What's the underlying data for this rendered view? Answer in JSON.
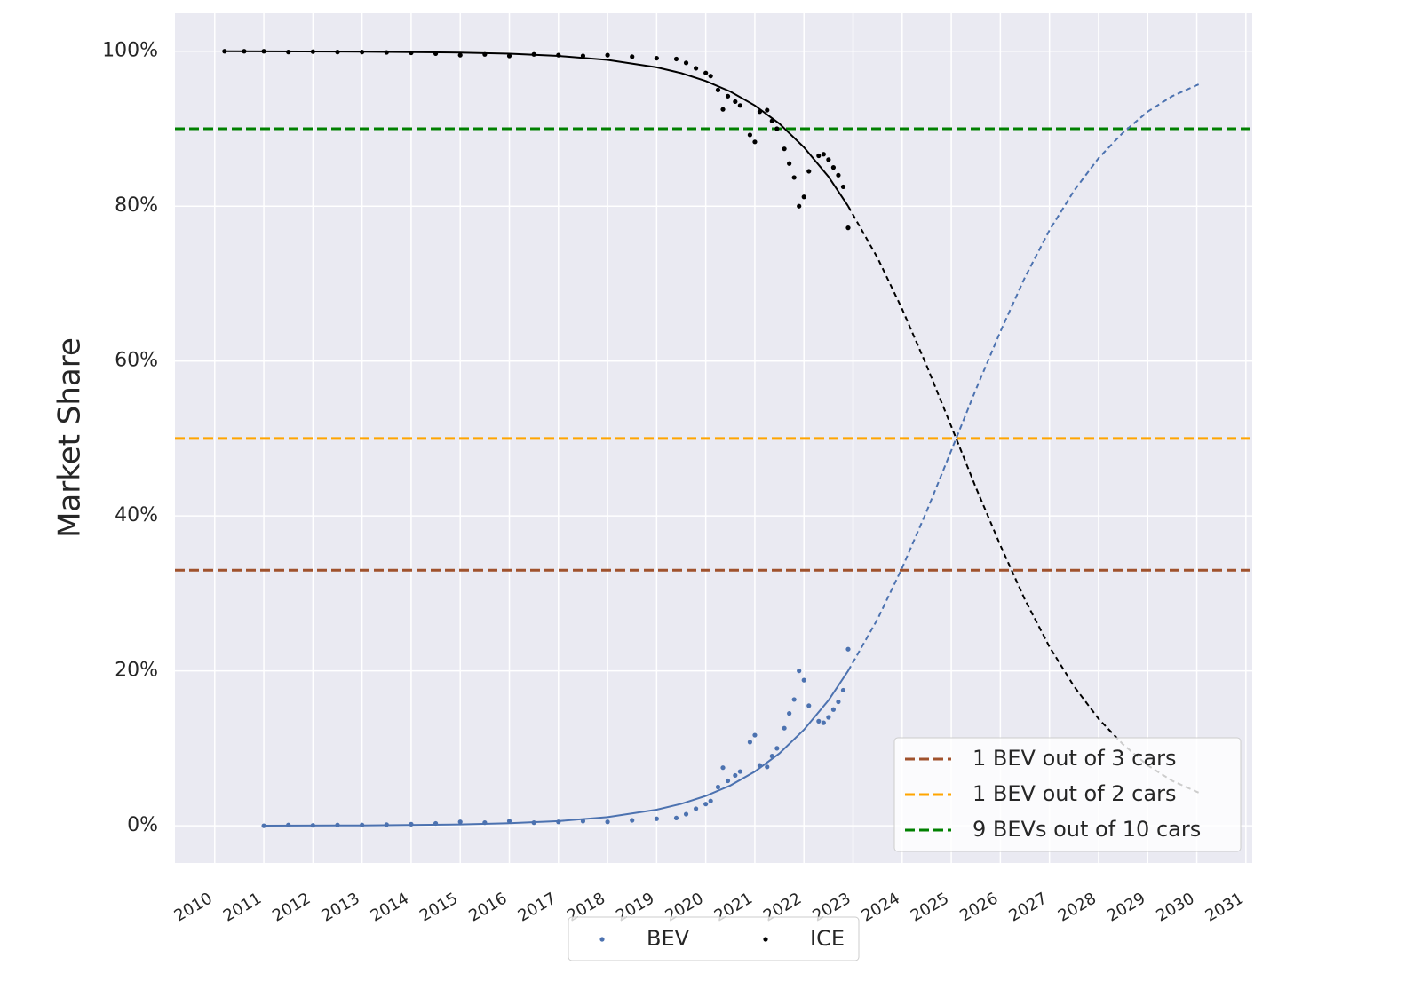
{
  "chart_data": {
    "type": "scatter",
    "y_label": "Market Share",
    "xlim": [
      2009.19,
      2031.13
    ],
    "ylim": [
      -4.8,
      104.9
    ],
    "xticks": [
      2010,
      2011,
      2012,
      2013,
      2014,
      2015,
      2016,
      2017,
      2018,
      2019,
      2020,
      2021,
      2022,
      2023,
      2024,
      2025,
      2026,
      2027,
      2028,
      2029,
      2030,
      2031
    ],
    "yticks": [
      {
        "value": 0,
        "label": "0%"
      },
      {
        "value": 20,
        "label": "20%"
      },
      {
        "value": 40,
        "label": "40%"
      },
      {
        "value": 60,
        "label": "60%"
      },
      {
        "value": 80,
        "label": "80%"
      },
      {
        "value": 100,
        "label": "100%"
      }
    ],
    "grid": true,
    "series": [
      {
        "name": "BEV",
        "color": "#4c72b0",
        "x": [
          2011.0,
          2011.5,
          2012,
          2012.5,
          2013,
          2013.5,
          2014,
          2014.5,
          2015,
          2015.5,
          2016,
          2016.5,
          2017,
          2017.5,
          2018,
          2018.5,
          2019,
          2019.4,
          2019.6,
          2019.8,
          2020,
          2020.1,
          2020.25,
          2020.35,
          2020.45,
          2020.6,
          2020.7,
          2020.9,
          2021.0,
          2021.1,
          2021.25,
          2021.35,
          2021.45,
          2021.6,
          2021.7,
          2021.8,
          2021.9,
          2022.0,
          2022.1,
          2022.3,
          2022.4,
          2022.5,
          2022.6,
          2022.7,
          2022.8,
          2022.9
        ],
        "values": [
          0,
          0.1,
          0.05,
          0.1,
          0.1,
          0.15,
          0.2,
          0.3,
          0.5,
          0.4,
          0.6,
          0.4,
          0.5,
          0.6,
          0.5,
          0.7,
          0.9,
          1.0,
          1.5,
          2.2,
          2.8,
          3.2,
          5.0,
          7.5,
          5.8,
          6.5,
          7.0,
          10.8,
          11.7,
          7.8,
          7.6,
          9.0,
          10.0,
          12.6,
          14.5,
          16.3,
          20,
          18.8,
          15.5,
          13.5,
          13.3,
          14,
          15,
          16,
          17.5,
          22.8
        ]
      },
      {
        "name": "ICE",
        "color": "#000000",
        "x": [
          2010.2,
          2010.6,
          2011.0,
          2011.5,
          2012,
          2012.5,
          2013,
          2013.5,
          2014,
          2014.5,
          2015,
          2015.5,
          2016,
          2016.5,
          2017,
          2017.5,
          2018,
          2018.5,
          2019,
          2019.4,
          2019.6,
          2019.8,
          2020,
          2020.1,
          2020.25,
          2020.35,
          2020.45,
          2020.6,
          2020.7,
          2020.9,
          2021.0,
          2021.1,
          2021.25,
          2021.35,
          2021.45,
          2021.6,
          2021.7,
          2021.8,
          2021.9,
          2022.0,
          2022.1,
          2022.3,
          2022.4,
          2022.5,
          2022.6,
          2022.7,
          2022.8,
          2022.9
        ],
        "values": [
          100,
          100,
          100,
          99.9,
          99.95,
          99.9,
          99.9,
          99.85,
          99.8,
          99.7,
          99.5,
          99.6,
          99.4,
          99.6,
          99.5,
          99.4,
          99.5,
          99.3,
          99.1,
          99.0,
          98.5,
          97.8,
          97.2,
          96.8,
          95.0,
          92.5,
          94.2,
          93.5,
          93.0,
          89.2,
          88.3,
          92.2,
          92.4,
          91.0,
          90.0,
          87.4,
          85.5,
          83.7,
          80.0,
          81.2,
          84.5,
          86.5,
          86.7,
          86.0,
          85.0,
          84.0,
          82.5,
          77.2
        ]
      }
    ],
    "fit_lines": [
      {
        "color": "#4c72b0",
        "style": "solid",
        "x": [
          2011,
          2013,
          2015,
          2016,
          2017,
          2018,
          2019,
          2019.5,
          2020,
          2020.5,
          2021,
          2021.5,
          2022,
          2022.5,
          2022.9
        ],
        "values": [
          0.01,
          0.05,
          0.17,
          0.32,
          0.6,
          1.12,
          2.08,
          2.83,
          3.85,
          5.2,
          7.0,
          9.35,
          12.4,
          16.2,
          20.0
        ]
      },
      {
        "color": "#4c72b0",
        "style": "dashed",
        "x": [
          2022.9,
          2023.5,
          2024,
          2024.5,
          2025.1,
          2025.5,
          2026,
          2026.5,
          2027,
          2027.5,
          2028,
          2028.5,
          2029,
          2029.5,
          2030.1
        ],
        "values": [
          20.0,
          26.7,
          33.3,
          40.6,
          50,
          56.3,
          63.8,
          70.8,
          76.9,
          82,
          86.2,
          89.5,
          92.2,
          94.2,
          95.9
        ]
      },
      {
        "color": "#000000",
        "style": "solid",
        "x": [
          2010.2,
          2013,
          2015,
          2016,
          2017,
          2018,
          2019,
          2019.5,
          2020,
          2020.5,
          2021,
          2021.5,
          2022,
          2022.5,
          2022.9
        ],
        "values": [
          99.99,
          99.95,
          99.83,
          99.68,
          99.4,
          98.88,
          97.92,
          97.17,
          96.15,
          94.8,
          93,
          90.65,
          87.6,
          83.8,
          80
        ]
      },
      {
        "color": "#000000",
        "style": "dashed",
        "x": [
          2022.9,
          2023.5,
          2024,
          2024.5,
          2025.1,
          2025.5,
          2026,
          2026.5,
          2027,
          2027.5,
          2028,
          2028.5,
          2029,
          2029.5,
          2030.1
        ],
        "values": [
          80,
          73.3,
          66.7,
          59.4,
          50,
          43.7,
          36.2,
          29.2,
          23.1,
          18,
          13.8,
          10.5,
          7.8,
          5.8,
          4.1
        ]
      }
    ],
    "reference_lines": [
      {
        "name": "1 BEV out of 3 cars",
        "value": 33,
        "color": "#a0522d"
      },
      {
        "name": "1 BEV out of 2 cars",
        "value": 50,
        "color": "#ffa500"
      },
      {
        "name": "9 BEVs out of 10 cars",
        "value": 90,
        "color": "#008000"
      }
    ],
    "reference_legend": "lower right",
    "series_legend": "below"
  }
}
